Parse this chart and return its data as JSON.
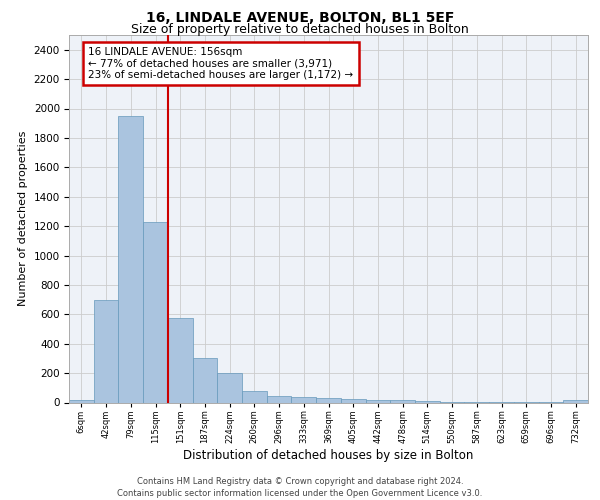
{
  "title1": "16, LINDALE AVENUE, BOLTON, BL1 5EF",
  "title2": "Size of property relative to detached houses in Bolton",
  "xlabel": "Distribution of detached houses by size in Bolton",
  "ylabel": "Number of detached properties",
  "footnote": "Contains HM Land Registry data © Crown copyright and database right 2024.\nContains public sector information licensed under the Open Government Licence v3.0.",
  "bar_labels": [
    "6sqm",
    "42sqm",
    "79sqm",
    "115sqm",
    "151sqm",
    "187sqm",
    "224sqm",
    "260sqm",
    "296sqm",
    "333sqm",
    "369sqm",
    "405sqm",
    "442sqm",
    "478sqm",
    "514sqm",
    "550sqm",
    "587sqm",
    "623sqm",
    "659sqm",
    "696sqm",
    "732sqm"
  ],
  "bar_values": [
    15,
    700,
    1950,
    1225,
    575,
    305,
    200,
    80,
    45,
    35,
    30,
    25,
    20,
    15,
    10,
    5,
    3,
    2,
    2,
    1,
    15
  ],
  "bar_color": "#aac4df",
  "bar_edge_color": "#6699bb",
  "annotation_text": "16 LINDALE AVENUE: 156sqm\n← 77% of detached houses are smaller (3,971)\n23% of semi-detached houses are larger (1,172) →",
  "vline_x_idx": 3,
  "vline_color": "#cc0000",
  "annotation_box_color": "#cc0000",
  "ylim": [
    0,
    2500
  ],
  "yticks": [
    0,
    200,
    400,
    600,
    800,
    1000,
    1200,
    1400,
    1600,
    1800,
    2000,
    2200,
    2400
  ],
  "grid_color": "#cccccc",
  "bg_color": "#eef2f8",
  "title1_fontsize": 10,
  "title2_fontsize": 9,
  "xlabel_fontsize": 8.5,
  "ylabel_fontsize": 8,
  "annotation_fontsize": 7.5,
  "footnote_fontsize": 6
}
